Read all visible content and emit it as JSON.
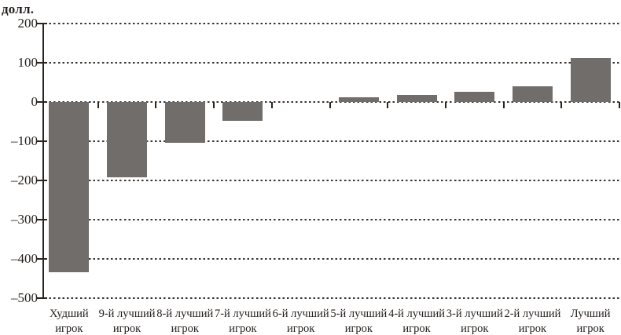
{
  "chart_data": {
    "type": "bar",
    "title": "",
    "ylabel": "долл.",
    "xlabel": "",
    "categories": [
      "Худший игрок",
      "9-й лучший игрок",
      "8-й лучший игрок",
      "7-й лучший игрок",
      "6-й лучший игрок",
      "5-й лучший игрок",
      "4-й лучший игрок",
      "3-й лучший игрок",
      "2-й лучший игрок",
      "Лучший игрок"
    ],
    "category_lines": [
      [
        "Худший",
        "игрок"
      ],
      [
        "9-й лучший",
        "игрок"
      ],
      [
        "8-й лучший",
        "игрок"
      ],
      [
        "7-й лучший",
        "игрок"
      ],
      [
        "6-й лучший",
        "игрок"
      ],
      [
        "5-й лучший",
        "игрок"
      ],
      [
        "4-й лучший",
        "игрок"
      ],
      [
        "3-й лучший",
        "игрок"
      ],
      [
        "2-й лучший",
        "игрок"
      ],
      [
        "Лучший",
        "игрок"
      ]
    ],
    "values": [
      -433,
      -192,
      -104,
      -47,
      0,
      13,
      19,
      27,
      41,
      112
    ],
    "ylim": [
      -500,
      200
    ],
    "yticks": [
      200,
      100,
      0,
      -100,
      -200,
      -300,
      -400,
      -500
    ],
    "ytick_labels": [
      "200",
      "100",
      "0",
      "–100",
      "–200",
      "–300",
      "–400",
      "–500"
    ],
    "grid": "horizontal-dotted",
    "legend": "none",
    "bar_color": "#716d6a",
    "axis_color": "#2a231e",
    "grid_color": "#3a332e",
    "text_color": "#241f1c"
  }
}
